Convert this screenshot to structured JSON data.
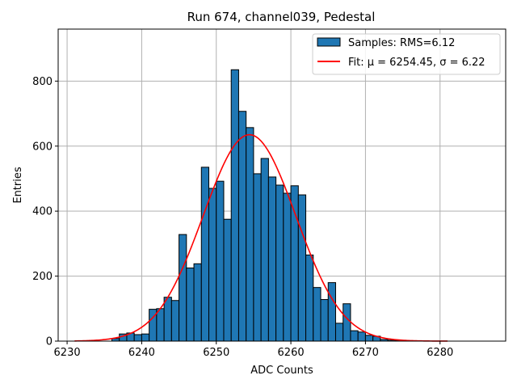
{
  "chart_data": {
    "type": "histogram",
    "title": "Run 674, channel039, Pedestal",
    "xlabel": "ADC Counts",
    "ylabel": "Entries",
    "xlim": [
      6228.8,
      6288.8
    ],
    "ylim": [
      0,
      960
    ],
    "grid": true,
    "legend_position": "top-right",
    "x_ticks": [
      6230,
      6240,
      6250,
      6260,
      6270,
      6280
    ],
    "y_ticks": [
      0,
      200,
      400,
      600,
      800
    ],
    "bin_width": 1,
    "series": [
      {
        "name": "Samples: RMS=6.12",
        "kind": "histogram",
        "color": "#1f77b4",
        "edge_color": "#000000",
        "bins": [
          {
            "x": 6236,
            "value": 8
          },
          {
            "x": 6237,
            "value": 22
          },
          {
            "x": 6238,
            "value": 25
          },
          {
            "x": 6239,
            "value": 20
          },
          {
            "x": 6240,
            "value": 22
          },
          {
            "x": 6241,
            "value": 98
          },
          {
            "x": 6242,
            "value": 100
          },
          {
            "x": 6243,
            "value": 135
          },
          {
            "x": 6244,
            "value": 125
          },
          {
            "x": 6245,
            "value": 328
          },
          {
            "x": 6246,
            "value": 225
          },
          {
            "x": 6247,
            "value": 238
          },
          {
            "x": 6248,
            "value": 535
          },
          {
            "x": 6249,
            "value": 470
          },
          {
            "x": 6250,
            "value": 492
          },
          {
            "x": 6251,
            "value": 375
          },
          {
            "x": 6252,
            "value": 835
          },
          {
            "x": 6253,
            "value": 707
          },
          {
            "x": 6254,
            "value": 657
          },
          {
            "x": 6255,
            "value": 515
          },
          {
            "x": 6256,
            "value": 562
          },
          {
            "x": 6257,
            "value": 505
          },
          {
            "x": 6258,
            "value": 480
          },
          {
            "x": 6259,
            "value": 455
          },
          {
            "x": 6260,
            "value": 478
          },
          {
            "x": 6261,
            "value": 450
          },
          {
            "x": 6262,
            "value": 265
          },
          {
            "x": 6263,
            "value": 165
          },
          {
            "x": 6264,
            "value": 128
          },
          {
            "x": 6265,
            "value": 180
          },
          {
            "x": 6266,
            "value": 55
          },
          {
            "x": 6267,
            "value": 115
          },
          {
            "x": 6268,
            "value": 32
          },
          {
            "x": 6269,
            "value": 28
          },
          {
            "x": 6270,
            "value": 18
          },
          {
            "x": 6271,
            "value": 15
          },
          {
            "x": 6272,
            "value": 5
          },
          {
            "x": 6273,
            "value": 3
          },
          {
            "x": 6274,
            "value": 2
          }
        ]
      },
      {
        "name": "Fit: μ = 6254.45, σ = 6.22",
        "kind": "line",
        "color": "#ff0000",
        "function": "gaussian",
        "mu": 6254.45,
        "sigma": 6.22,
        "amplitude": 635,
        "x_range": [
          6231,
          6281
        ]
      }
    ]
  }
}
